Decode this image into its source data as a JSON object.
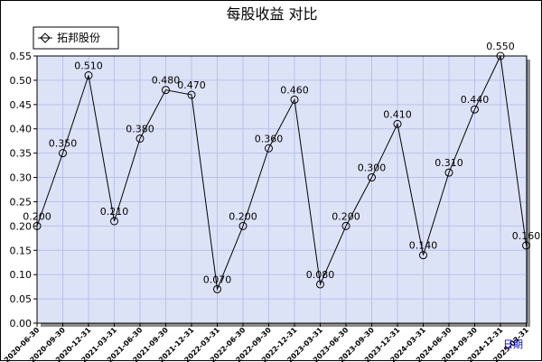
{
  "chart_data": {
    "type": "line",
    "title": "每股收益  对比",
    "xlabel": "日期",
    "ylabel": "",
    "ylim": [
      0,
      0.55
    ],
    "y_ticks": [
      "0.00",
      "0.05",
      "0.10",
      "0.15",
      "0.20",
      "0.25",
      "0.30",
      "0.35",
      "0.40",
      "0.45",
      "0.50",
      "0.55"
    ],
    "grid": true,
    "legend_position": "top-left",
    "colors": {
      "plot_bg": "#dde3f7",
      "grid": "#b8c2e8",
      "line": "#000000",
      "shadow": "#8c8c8c"
    },
    "x": [
      "2020-06-30",
      "2020-09-30",
      "2020-12-31",
      "2021-03-31",
      "2021-06-30",
      "2021-09-30",
      "2021-12-31",
      "2022-03-31",
      "2022-06-30",
      "2022-09-30",
      "2022-12-31",
      "2023-03-31",
      "2023-06-30",
      "2023-09-30",
      "2023-12-31",
      "2024-03-31",
      "2024-06-30",
      "2024-09-30",
      "2024-12-31",
      "2025-03-31"
    ],
    "series": [
      {
        "name": "拓邦股份",
        "values": [
          0.2,
          0.35,
          0.51,
          0.21,
          0.38,
          0.48,
          0.47,
          0.07,
          0.2,
          0.36,
          0.46,
          0.08,
          0.2,
          0.3,
          0.41,
          0.14,
          0.31,
          0.44,
          0.55,
          0.16
        ],
        "labels": [
          "0.200",
          "0.350",
          "0.510",
          "0.210",
          "0.380",
          "0.480",
          "0.470",
          "0.070",
          "0.200",
          "0.360",
          "0.460",
          "0.080",
          "0.200",
          "0.300",
          "0.410",
          "0.140",
          "0.310",
          "0.440",
          "0.550",
          "0.160"
        ]
      }
    ]
  }
}
